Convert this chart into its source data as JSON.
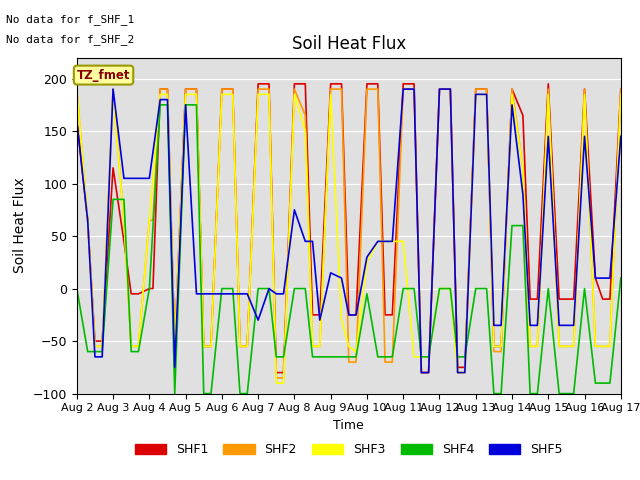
{
  "title": "Soil Heat Flux",
  "ylabel": "Soil Heat Flux",
  "xlabel": "Time",
  "annotations": [
    "No data for f_SHF_1",
    "No data for f_SHF_2"
  ],
  "annotation_label": "TZ_fmet",
  "ylim": [
    -100,
    220
  ],
  "yticks": [
    -100,
    -50,
    0,
    50,
    100,
    150,
    200
  ],
  "xtick_labels": [
    "Aug 2",
    "Aug 3",
    "Aug 4",
    "Aug 5",
    "Aug 6",
    "Aug 7",
    "Aug 8",
    "Aug 9",
    "Aug 10",
    "Aug 11",
    "Aug 12",
    "Aug 13",
    "Aug 14",
    "Aug 15",
    "Aug 16",
    "Aug 17"
  ],
  "legend_labels": [
    "SHF1",
    "SHF2",
    "SHF3",
    "SHF4",
    "SHF5"
  ],
  "colors": {
    "SHF1": "#dd0000",
    "SHF2": "#ff9900",
    "SHF3": "#ffff00",
    "SHF4": "#00bb00",
    "SHF5": "#0000dd"
  },
  "SHF1_x": [
    2.0,
    2.3,
    2.5,
    2.7,
    3.0,
    3.3,
    3.5,
    3.7,
    4.0,
    4.1,
    4.3,
    4.5,
    4.7,
    5.0,
    5.3,
    5.5,
    5.7,
    6.0,
    6.3,
    6.5,
    6.7,
    7.0,
    7.3,
    7.5,
    7.7,
    8.0,
    8.3,
    8.5,
    8.7,
    9.0,
    9.3,
    9.5,
    9.7,
    10.0,
    10.3,
    10.5,
    10.7,
    11.0,
    11.3,
    11.5,
    11.7,
    12.0,
    12.3,
    12.5,
    12.7,
    13.0,
    13.3,
    13.5,
    13.7,
    14.0,
    14.3,
    14.5,
    14.7,
    15.0,
    15.3,
    15.5,
    15.7,
    16.0,
    16.3,
    16.5,
    16.7,
    17.0
  ],
  "SHF1_y": [
    160,
    65,
    -50,
    -50,
    115,
    45,
    -5,
    -5,
    0,
    0,
    190,
    190,
    -55,
    190,
    190,
    -55,
    -55,
    190,
    190,
    -55,
    -55,
    195,
    195,
    -80,
    -80,
    195,
    195,
    -25,
    -25,
    195,
    195,
    -25,
    -25,
    195,
    195,
    -25,
    -25,
    195,
    195,
    -80,
    -80,
    190,
    190,
    -75,
    -75,
    190,
    190,
    -55,
    -55,
    190,
    165,
    -10,
    -10,
    195,
    -10,
    -10,
    -10,
    190,
    10,
    -10,
    -10,
    190
  ],
  "SHF2_x": [
    2.0,
    2.3,
    2.5,
    2.7,
    3.0,
    3.3,
    3.5,
    3.7,
    4.0,
    4.1,
    4.3,
    4.5,
    4.7,
    5.0,
    5.3,
    5.5,
    5.7,
    6.0,
    6.3,
    6.5,
    6.7,
    7.0,
    7.3,
    7.5,
    7.7,
    8.0,
    8.3,
    8.5,
    8.7,
    9.0,
    9.3,
    9.5,
    9.7,
    10.0,
    10.3,
    10.5,
    10.7,
    11.0,
    11.3,
    11.5,
    11.7,
    12.0,
    12.3,
    12.5,
    12.7,
    13.0,
    13.3,
    13.5,
    13.7,
    14.0,
    14.3,
    14.5,
    14.7,
    15.0,
    15.3,
    15.5,
    15.7,
    16.0,
    16.3,
    16.5,
    16.7,
    17.0
  ],
  "SHF2_y": [
    190,
    65,
    -55,
    -55,
    190,
    65,
    -55,
    -55,
    65,
    65,
    190,
    190,
    -55,
    190,
    190,
    -55,
    -55,
    190,
    190,
    -55,
    -55,
    190,
    190,
    -85,
    -85,
    190,
    165,
    -55,
    -55,
    190,
    190,
    -70,
    -70,
    190,
    190,
    -70,
    -70,
    190,
    190,
    -80,
    -80,
    190,
    190,
    -80,
    -80,
    190,
    190,
    -60,
    -60,
    190,
    115,
    -55,
    -55,
    190,
    -55,
    -55,
    -55,
    190,
    -55,
    -55,
    -55,
    190
  ],
  "SHF3_x": [
    2.0,
    2.3,
    2.5,
    2.7,
    3.0,
    3.3,
    3.5,
    3.7,
    4.0,
    4.3,
    4.5,
    4.7,
    5.0,
    5.3,
    5.5,
    5.7,
    6.0,
    6.3,
    6.5,
    6.7,
    7.0,
    7.3,
    7.5,
    7.7,
    8.0,
    8.3,
    8.5,
    8.7,
    9.0,
    9.3,
    9.5,
    9.7,
    10.0,
    10.3,
    10.5,
    10.7,
    11.0,
    11.3,
    11.5,
    11.7,
    12.0,
    12.3,
    12.5,
    12.7,
    13.0,
    13.3,
    13.5,
    13.7,
    14.0,
    14.3,
    14.5,
    14.7,
    15.0,
    15.3,
    15.5,
    15.7,
    16.0,
    16.3,
    16.5,
    16.7,
    17.0
  ],
  "SHF3_y": [
    190,
    65,
    -55,
    -55,
    185,
    65,
    -55,
    -55,
    65,
    185,
    185,
    -55,
    185,
    185,
    -55,
    -55,
    185,
    185,
    -55,
    -55,
    185,
    185,
    -90,
    -90,
    185,
    150,
    -55,
    -55,
    185,
    -30,
    -55,
    -60,
    25,
    45,
    45,
    45,
    45,
    -65,
    -65,
    -65,
    0,
    0,
    -80,
    -80,
    185,
    185,
    -55,
    -55,
    185,
    115,
    -55,
    -55,
    185,
    -55,
    -55,
    -55,
    185,
    -55,
    -55,
    -55,
    185
  ],
  "SHF4_x": [
    2.0,
    2.3,
    2.5,
    2.7,
    3.0,
    3.3,
    3.5,
    3.7,
    4.0,
    4.3,
    4.5,
    4.7,
    5.0,
    5.3,
    5.5,
    5.7,
    6.0,
    6.3,
    6.5,
    6.7,
    7.0,
    7.3,
    7.5,
    7.7,
    8.0,
    8.3,
    8.5,
    8.7,
    9.0,
    9.3,
    9.5,
    9.7,
    10.0,
    10.3,
    10.5,
    10.7,
    11.0,
    11.3,
    11.5,
    11.7,
    12.0,
    12.3,
    12.5,
    12.7,
    13.0,
    13.3,
    13.5,
    13.7,
    14.0,
    14.3,
    14.5,
    14.7,
    15.0,
    15.3,
    15.5,
    15.7,
    16.0,
    16.3,
    16.5,
    16.7,
    17.0
  ],
  "SHF4_y": [
    0,
    -60,
    -60,
    -60,
    85,
    85,
    -60,
    -60,
    0,
    175,
    175,
    -100,
    175,
    175,
    -100,
    -100,
    0,
    0,
    -100,
    -100,
    0,
    0,
    -65,
    -65,
    0,
    0,
    -65,
    -65,
    -65,
    -65,
    -65,
    -65,
    -5,
    -65,
    -65,
    -65,
    0,
    0,
    -65,
    -65,
    0,
    0,
    -65,
    -65,
    0,
    0,
    -100,
    -100,
    60,
    60,
    -100,
    -100,
    0,
    -100,
    -100,
    -100,
    0,
    -90,
    -90,
    -90,
    10
  ],
  "SHF5_x": [
    2.0,
    2.3,
    2.5,
    2.7,
    3.0,
    3.3,
    3.5,
    3.7,
    4.0,
    4.3,
    4.5,
    4.7,
    5.0,
    5.3,
    5.5,
    5.7,
    6.0,
    6.3,
    6.5,
    6.7,
    7.0,
    7.3,
    7.5,
    7.7,
    8.0,
    8.3,
    8.5,
    8.7,
    9.0,
    9.3,
    9.5,
    9.7,
    10.0,
    10.3,
    10.5,
    10.7,
    11.0,
    11.3,
    11.5,
    11.7,
    12.0,
    12.3,
    12.5,
    12.7,
    13.0,
    13.3,
    13.5,
    13.7,
    14.0,
    14.3,
    14.5,
    14.7,
    15.0,
    15.3,
    15.5,
    15.7,
    16.0,
    16.3,
    16.5,
    16.7,
    17.0
  ],
  "SHF5_y": [
    160,
    65,
    -65,
    -65,
    190,
    105,
    105,
    105,
    105,
    180,
    180,
    -75,
    175,
    -5,
    -5,
    -5,
    -5,
    -5,
    -5,
    -5,
    -30,
    0,
    -5,
    -5,
    75,
    45,
    45,
    -30,
    15,
    10,
    -25,
    -25,
    30,
    45,
    45,
    45,
    190,
    190,
    -80,
    -80,
    190,
    190,
    -80,
    -80,
    185,
    185,
    -35,
    -35,
    175,
    90,
    -35,
    -35,
    145,
    -35,
    -35,
    -35,
    145,
    10,
    10,
    10,
    145
  ]
}
